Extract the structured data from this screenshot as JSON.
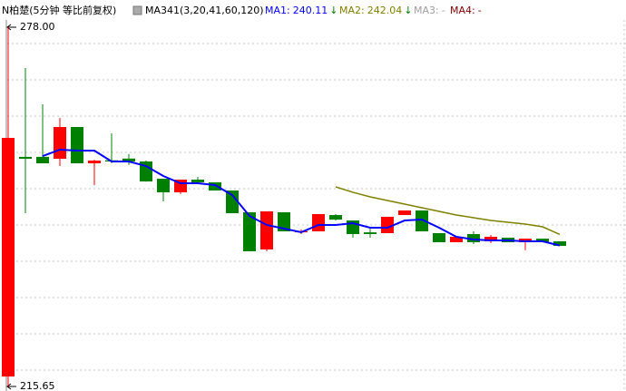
{
  "chart_data": {
    "type": "candlestick",
    "title": "N柏楚(5分钟 等比前复权)",
    "indicator": "MA341(3,20,41,60,120)",
    "up_color": "#ff0000",
    "down_color": "#008000",
    "ylim": [
      215.65,
      278.0
    ],
    "yticks": [
      {
        "value": 278.0,
        "label": "278.00"
      },
      215.65
    ],
    "open": [
      217.38,
      255.5,
      255.5,
      255.17,
      260.68,
      254.38,
      254.9,
      255.2,
      254.7,
      251.7,
      249.35,
      251.55,
      251.08,
      249.66,
      245.88,
      239.43,
      245.88,
      242.4,
      242.57,
      245.4,
      244.46,
      242.4,
      242.26,
      245.4,
      246.2,
      242.26,
      240.68,
      242.1,
      240.84,
      241.47,
      240.68,
      241.3,
      240.84
    ],
    "high": [
      278.0,
      270.92,
      264.62,
      262.26,
      260.68,
      255.0,
      259.58,
      256.0,
      254.85,
      251.7,
      251.55,
      252.0,
      251.08,
      249.66,
      245.88,
      246.04,
      245.88,
      242.9,
      245.57,
      245.57,
      244.46,
      243.05,
      245.1,
      246.2,
      246.2,
      242.26,
      241.63,
      242.57,
      241.95,
      241.47,
      241.3,
      241.3,
      240.84
    ],
    "low": [
      215.65,
      245.72,
      254.38,
      253.91,
      254.38,
      250.6,
      254.4,
      254.1,
      251.2,
      247.77,
      249.04,
      251.08,
      249.66,
      245.72,
      239.11,
      239.11,
      242.57,
      242.1,
      242.57,
      244.46,
      241.47,
      241.47,
      242.26,
      245.4,
      242.57,
      240.68,
      240.68,
      240.37,
      240.53,
      240.68,
      239.3,
      240.68,
      240.05
    ],
    "close": [
      258.79,
      255.17,
      254.38,
      260.68,
      254.38,
      254.85,
      254.7,
      254.7,
      251.23,
      249.35,
      251.55,
      251.08,
      249.66,
      245.72,
      239.11,
      246.04,
      242.57,
      242.6,
      245.57,
      244.6,
      242.1,
      242.1,
      245.1,
      246.2,
      242.57,
      240.68,
      241.63,
      240.68,
      241.63,
      240.68,
      241.3,
      240.68,
      240.05
    ],
    "series": [
      {
        "name": "MA1:",
        "legend_value": 240.11,
        "trend": "↓",
        "color": "#0000ff",
        "values": [
          null,
          null,
          255.64,
          256.75,
          256.59,
          256.59,
          254.7,
          254.7,
          253.91,
          252.18,
          250.92,
          250.92,
          250.61,
          248.87,
          245.25,
          243.68,
          243.05,
          242.42,
          243.68,
          243.68,
          243.99,
          243.2,
          243.2,
          244.46,
          244.62,
          243.2,
          241.63,
          241.16,
          241.0,
          241.0,
          240.84,
          240.84,
          240.11
        ]
      },
      {
        "name": "MA2:",
        "legend_value": 242.04,
        "trend": "↓",
        "color": "#808000",
        "values": [
          null,
          null,
          null,
          null,
          null,
          null,
          null,
          null,
          null,
          null,
          null,
          null,
          null,
          null,
          null,
          null,
          null,
          null,
          null,
          250.29,
          249.35,
          248.56,
          247.93,
          247.3,
          246.67,
          246.04,
          245.41,
          244.94,
          244.46,
          244.15,
          243.83,
          243.36,
          242.04
        ]
      },
      {
        "name": "MA3:",
        "legend_value": "-",
        "color": "#a0a0a0"
      },
      {
        "name": "MA4:",
        "legend_value": "-",
        "color": "#800000"
      }
    ]
  }
}
